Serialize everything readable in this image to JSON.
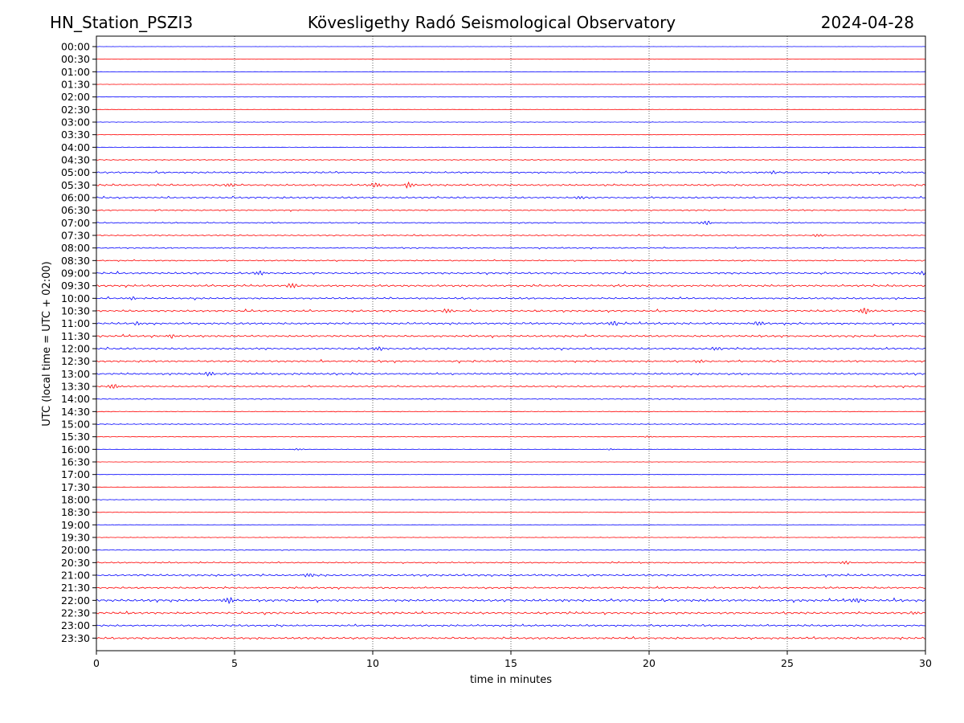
{
  "header": {
    "station": "HN_Station_PSZI3",
    "observatory": "Kövesligethy Radó Seismological Observatory",
    "date": "2024-04-28"
  },
  "chart_data": {
    "type": "line",
    "title": "Kövesligethy Radó Seismological Observatory",
    "xlabel": "time in minutes",
    "ylabel": "UTC (local time = UTC + 02:00)",
    "xlim": [
      0,
      30
    ],
    "x_ticks": [
      "0",
      "5",
      "10",
      "15",
      "20",
      "25",
      "30"
    ],
    "x_tick_values": [
      0,
      5,
      10,
      15,
      20,
      25,
      30
    ],
    "grid_x": [
      5,
      10,
      15,
      20,
      25
    ],
    "trace_colors": [
      "#0000ff",
      "#ff0000"
    ],
    "row_labels": [
      "00:00",
      "00:30",
      "01:00",
      "01:30",
      "02:00",
      "02:30",
      "03:00",
      "03:30",
      "04:00",
      "04:30",
      "05:00",
      "05:30",
      "06:00",
      "06:30",
      "07:00",
      "07:30",
      "08:00",
      "08:30",
      "09:00",
      "09:30",
      "10:00",
      "10:30",
      "11:00",
      "11:30",
      "12:00",
      "12:30",
      "13:00",
      "13:30",
      "14:00",
      "14:30",
      "15:00",
      "15:30",
      "16:00",
      "16:30",
      "17:00",
      "17:30",
      "18:00",
      "18:30",
      "19:00",
      "19:30",
      "20:00",
      "20:30",
      "21:00",
      "21:30",
      "22:00",
      "22:30",
      "23:00",
      "23:30"
    ],
    "noise_level": [
      0.2,
      0.2,
      0.2,
      0.3,
      0.3,
      0.5,
      0.5,
      0.4,
      0.5,
      1.0,
      1.8,
      2.0,
      1.8,
      1.4,
      1.3,
      1.3,
      1.3,
      1.3,
      2.0,
      2.2,
      1.8,
      2.0,
      2.2,
      2.0,
      2.0,
      2.0,
      2.0,
      1.6,
      1.2,
      0.8,
      0.9,
      0.7,
      0.6,
      0.4,
      0.4,
      0.5,
      0.6,
      0.6,
      0.6,
      0.6,
      0.9,
      1.4,
      2.0,
      1.9,
      2.6,
      2.2,
      2.0,
      2.1
    ],
    "events": [
      {
        "row": 10,
        "minute": 24.5,
        "amp": 2.0
      },
      {
        "row": 11,
        "minute": 4.8,
        "amp": 2.4
      },
      {
        "row": 11,
        "minute": 10.1,
        "amp": 2.6
      },
      {
        "row": 11,
        "minute": 11.3,
        "amp": 3.4
      },
      {
        "row": 12,
        "minute": 17.5,
        "amp": 2.0
      },
      {
        "row": 14,
        "minute": 22.1,
        "amp": 2.6
      },
      {
        "row": 15,
        "minute": 26.1,
        "amp": 2.0
      },
      {
        "row": 18,
        "minute": 5.9,
        "amp": 2.2
      },
      {
        "row": 18,
        "minute": 29.9,
        "amp": 2.2
      },
      {
        "row": 19,
        "minute": 7.1,
        "amp": 3.0
      },
      {
        "row": 20,
        "minute": 1.3,
        "amp": 2.0
      },
      {
        "row": 21,
        "minute": 12.7,
        "amp": 2.8
      },
      {
        "row": 21,
        "minute": 27.8,
        "amp": 4.2
      },
      {
        "row": 22,
        "minute": 1.5,
        "amp": 2.4
      },
      {
        "row": 22,
        "minute": 18.7,
        "amp": 3.0
      },
      {
        "row": 22,
        "minute": 24.0,
        "amp": 2.4
      },
      {
        "row": 23,
        "minute": 2.7,
        "amp": 2.0
      },
      {
        "row": 24,
        "minute": 10.2,
        "amp": 2.0
      },
      {
        "row": 24,
        "minute": 22.4,
        "amp": 2.2
      },
      {
        "row": 25,
        "minute": 21.8,
        "amp": 2.2
      },
      {
        "row": 26,
        "minute": 4.1,
        "amp": 2.2
      },
      {
        "row": 27,
        "minute": 0.6,
        "amp": 2.6
      },
      {
        "row": 32,
        "minute": 7.3,
        "amp": 0.8
      },
      {
        "row": 32,
        "minute": 18.6,
        "amp": 0.8
      },
      {
        "row": 31,
        "minute": 20.0,
        "amp": 0.9
      },
      {
        "row": 41,
        "minute": 27.1,
        "amp": 2.0
      },
      {
        "row": 42,
        "minute": 7.7,
        "amp": 1.8
      },
      {
        "row": 44,
        "minute": 4.8,
        "amp": 3.6
      },
      {
        "row": 44,
        "minute": 27.5,
        "amp": 2.2
      },
      {
        "row": 45,
        "minute": 29.6,
        "amp": 2.2
      }
    ]
  }
}
